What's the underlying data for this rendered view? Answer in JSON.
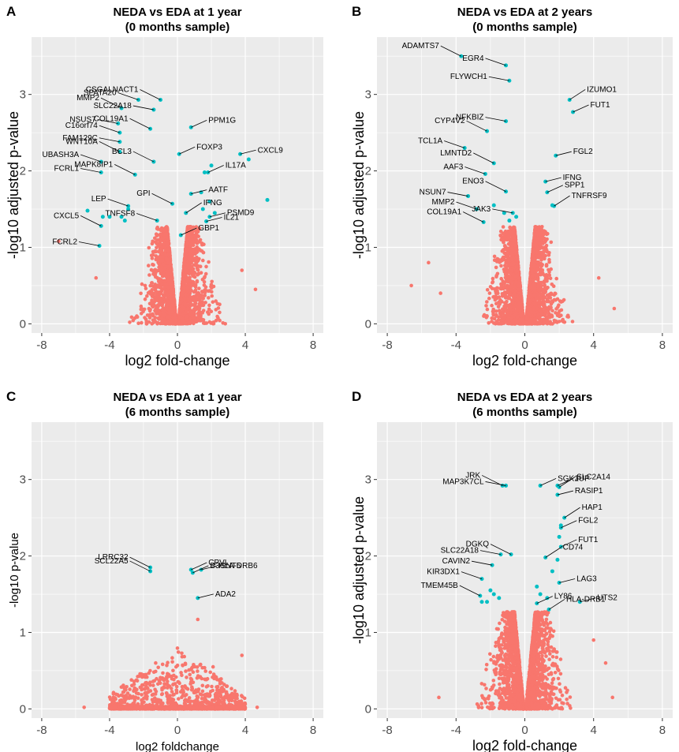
{
  "chart_data": [
    {
      "panel": "A",
      "type": "scatter",
      "title": [
        "NEDA vs EDA at 1 year",
        "(0 months sample)"
      ],
      "xlabel": "log2 fold-change",
      "ylabel": "-log10 adjusted p-value",
      "xlim": [
        -8.6,
        8.6
      ],
      "ylim": [
        -0.12,
        3.75
      ],
      "xticks": [
        -8,
        -4,
        0,
        4,
        8
      ],
      "yticks": [
        0,
        1,
        2,
        3
      ],
      "cloud": {
        "threshold": 1.27,
        "xspread": 2.3,
        "outliers": [
          [
            -7.0,
            1.08
          ],
          [
            -4.8,
            0.6
          ],
          [
            3.8,
            0.7
          ],
          [
            4.6,
            0.45
          ]
        ]
      },
      "sig_points": [
        [
          -5.3,
          1.48
        ],
        [
          -4.4,
          1.4
        ],
        [
          -4.0,
          1.4
        ],
        [
          -3.1,
          1.35
        ],
        [
          -2.9,
          1.5
        ],
        [
          -3.3,
          1.4
        ],
        [
          5.3,
          1.62
        ],
        [
          4.2,
          2.15
        ],
        [
          2.0,
          2.07
        ],
        [
          1.6,
          1.98
        ],
        [
          1.9,
          1.6
        ],
        [
          2.2,
          1.45
        ],
        [
          1.5,
          1.5
        ],
        [
          1.4,
          1.72
        ]
      ],
      "labels": [
        {
          "gene": "CSGALNACT1",
          "x": -1.0,
          "y": 2.93
        },
        {
          "gene": "SPATA20",
          "x": -2.3,
          "y": 2.93
        },
        {
          "gene": "SLC22A18",
          "x": -1.4,
          "y": 2.8
        },
        {
          "gene": "MMP2",
          "x": -3.3,
          "y": 2.82
        },
        {
          "gene": "PPM1G",
          "x": 0.8,
          "y": 2.57
        },
        {
          "gene": "NSUS7",
          "x": -3.5,
          "y": 2.62
        },
        {
          "gene": "COL19A1",
          "x": -1.6,
          "y": 2.55
        },
        {
          "gene": "C16orf74",
          "x": -3.4,
          "y": 2.5
        },
        {
          "gene": "FAM129C",
          "x": -3.4,
          "y": 2.38
        },
        {
          "gene": "WNT10A",
          "x": -3.4,
          "y": 2.25
        },
        {
          "gene": "UBASH3A",
          "x": -4.5,
          "y": 2.12
        },
        {
          "gene": "FCRL1",
          "x": -4.5,
          "y": 1.98
        },
        {
          "gene": "BCL3",
          "x": -1.4,
          "y": 2.12
        },
        {
          "gene": "FOXP3",
          "x": 0.1,
          "y": 2.22
        },
        {
          "gene": "CXCL9",
          "x": 3.7,
          "y": 2.22
        },
        {
          "gene": "MAPK8IP1",
          "x": -2.5,
          "y": 1.95
        },
        {
          "gene": "IL17A",
          "x": 1.8,
          "y": 1.98
        },
        {
          "gene": "AATF",
          "x": 0.8,
          "y": 1.7
        },
        {
          "gene": "GPI",
          "x": -0.3,
          "y": 1.57
        },
        {
          "gene": "LEP",
          "x": -2.9,
          "y": 1.54
        },
        {
          "gene": "PSMD9",
          "x": 1.9,
          "y": 1.4
        },
        {
          "gene": "IFNG",
          "x": 0.5,
          "y": 1.45
        },
        {
          "gene": "TNFSF8",
          "x": -1.2,
          "y": 1.35
        },
        {
          "gene": "IL21",
          "x": 1.7,
          "y": 1.34
        },
        {
          "gene": "CXCL5",
          "x": -4.5,
          "y": 1.28
        },
        {
          "gene": "GBP1",
          "x": 0.2,
          "y": 1.16
        },
        {
          "gene": "FCRL2",
          "x": -4.6,
          "y": 1.02
        }
      ]
    },
    {
      "panel": "B",
      "type": "scatter",
      "title": [
        "NEDA vs EDA at 2 years",
        "(0 months sample)"
      ],
      "xlabel": "log2 fold-change",
      "ylabel": "-log10 adjusted p-value",
      "xlim": [
        -8.6,
        8.6
      ],
      "ylim": [
        -0.12,
        3.75
      ],
      "xticks": [
        -8,
        -4,
        0,
        4,
        8
      ],
      "yticks": [
        0,
        1,
        2,
        3
      ],
      "cloud": {
        "threshold": 1.27,
        "xspread": 2.2,
        "outliers": [
          [
            -6.6,
            0.5
          ],
          [
            -5.6,
            0.8
          ],
          [
            -4.9,
            0.4
          ],
          [
            5.2,
            0.2
          ],
          [
            4.3,
            0.6
          ]
        ]
      },
      "sig_points": [
        [
          -1.2,
          1.45
        ],
        [
          -0.9,
          1.35
        ],
        [
          -1.8,
          1.55
        ],
        [
          1.6,
          1.55
        ],
        [
          -0.5,
          1.4
        ]
      ],
      "labels": [
        {
          "gene": "ADAMTS7",
          "x": -3.7,
          "y": 3.5
        },
        {
          "gene": "EGR4",
          "x": -1.1,
          "y": 3.38
        },
        {
          "gene": "FLYWCH1",
          "x": -0.9,
          "y": 3.18
        },
        {
          "gene": "IZUMO1",
          "x": 2.6,
          "y": 2.93
        },
        {
          "gene": "FUT1",
          "x": 2.8,
          "y": 2.77
        },
        {
          "gene": "NFKBIZ",
          "x": -1.1,
          "y": 2.65
        },
        {
          "gene": "CYP4V2",
          "x": -2.2,
          "y": 2.52
        },
        {
          "gene": "TCL1A",
          "x": -3.5,
          "y": 2.3
        },
        {
          "gene": "FGL2",
          "x": 1.8,
          "y": 2.2
        },
        {
          "gene": "LMNTD2",
          "x": -1.8,
          "y": 2.1
        },
        {
          "gene": "AAF3",
          "x": -2.3,
          "y": 1.96
        },
        {
          "gene": "IFNG",
          "x": 1.2,
          "y": 1.86
        },
        {
          "gene": "ENO3",
          "x": -1.1,
          "y": 1.73
        },
        {
          "gene": "SPP1",
          "x": 1.3,
          "y": 1.72
        },
        {
          "gene": "NSUN7",
          "x": -3.3,
          "y": 1.67
        },
        {
          "gene": "TNFRSF9",
          "x": 1.7,
          "y": 1.54
        },
        {
          "gene": "MMP2",
          "x": -2.8,
          "y": 1.5
        },
        {
          "gene": "JAK3",
          "x": -0.7,
          "y": 1.45
        },
        {
          "gene": "COL19A1",
          "x": -2.4,
          "y": 1.33
        }
      ]
    },
    {
      "panel": "C",
      "type": "scatter",
      "title": [
        "NEDA vs EDA at 1 year",
        "(6 months sample)"
      ],
      "xlabel": "log2 foldchange",
      "ylabel": "-log10 p-value",
      "xlim": [
        -8.6,
        8.6
      ],
      "ylim": [
        -0.12,
        3.75
      ],
      "xticks": [
        -8,
        -4,
        0,
        4,
        8
      ],
      "yticks": [
        0,
        1,
        2,
        3
      ],
      "cloud": {
        "threshold": 0.8,
        "xspread": 4.0,
        "outliers": [
          [
            -5.5,
            0.02
          ],
          [
            4.7,
            0.02
          ],
          [
            3.8,
            0.7
          ],
          [
            1.2,
            1.17
          ],
          [
            2.1,
            0.55
          ]
        ]
      },
      "sig_points": [],
      "labels": [
        {
          "gene": "LRRC32",
          "x": -1.6,
          "y": 1.85
        },
        {
          "gene": "CPVL",
          "x": 0.8,
          "y": 1.82
        },
        {
          "gene": "HLA-DRB6",
          "x": 1.4,
          "y": 1.82
        },
        {
          "gene": "SCL22A5",
          "x": -1.6,
          "y": 1.8
        },
        {
          "gene": "B3GNT5",
          "x": 0.9,
          "y": 1.78
        },
        {
          "gene": "ADA2",
          "x": 1.2,
          "y": 1.45
        }
      ]
    },
    {
      "panel": "D",
      "type": "scatter",
      "title": [
        "NEDA vs EDA at 2 years",
        "(6 months sample)"
      ],
      "xlabel": "log2 fold-change",
      "ylabel": "-log10 adjusted p-value",
      "xlim": [
        -8.6,
        8.6
      ],
      "ylim": [
        -0.12,
        3.75
      ],
      "xticks": [
        -8,
        -4,
        0,
        4,
        8
      ],
      "yticks": [
        0,
        1,
        2,
        3
      ],
      "cloud": {
        "threshold": 1.27,
        "xspread": 2.4,
        "outliers": [
          [
            -5.0,
            0.15
          ],
          [
            5.1,
            0.15
          ],
          [
            4.7,
            0.6
          ],
          [
            4.0,
            0.9
          ]
        ]
      },
      "sig_points": [
        [
          -2.5,
          1.4
        ],
        [
          -2.2,
          1.4
        ],
        [
          -1.8,
          1.5
        ],
        [
          -1.5,
          1.45
        ],
        [
          0.9,
          1.5
        ],
        [
          1.3,
          1.45
        ],
        [
          0.7,
          1.6
        ],
        [
          1.6,
          1.8
        ],
        [
          1.9,
          1.95
        ],
        [
          2.0,
          2.25
        ],
        [
          2.1,
          2.4
        ],
        [
          -2.0,
          1.55
        ]
      ],
      "labels": [
        {
          "gene": "JRK",
          "x": -1.3,
          "y": 2.92
        },
        {
          "gene": "JUP",
          "x": 1.9,
          "y": 2.92
        },
        {
          "gene": "MAP3K7CL",
          "x": -1.1,
          "y": 2.92
        },
        {
          "gene": "SLC2A14",
          "x": 2.0,
          "y": 2.9
        },
        {
          "gene": "SGK1",
          "x": 0.9,
          "y": 2.92
        },
        {
          "gene": "RASIP1",
          "x": 1.9,
          "y": 2.8
        },
        {
          "gene": "HAP1",
          "x": 2.3,
          "y": 2.5
        },
        {
          "gene": "FGL2",
          "x": 2.1,
          "y": 2.37
        },
        {
          "gene": "SLC22A18",
          "x": -1.4,
          "y": 2.02
        },
        {
          "gene": "DGKQ",
          "x": -0.8,
          "y": 2.02
        },
        {
          "gene": "FUT1",
          "x": 2.1,
          "y": 2.12
        },
        {
          "gene": "CAVIN2",
          "x": -1.9,
          "y": 1.88
        },
        {
          "gene": "CD74",
          "x": 1.2,
          "y": 1.98
        },
        {
          "gene": "KIR3DX1",
          "x": -2.5,
          "y": 1.7
        },
        {
          "gene": "LAG3",
          "x": 2.0,
          "y": 1.65
        },
        {
          "gene": "TMEM45B",
          "x": -2.6,
          "y": 1.48
        },
        {
          "gene": "LY86",
          "x": 0.7,
          "y": 1.38
        },
        {
          "gene": "UTS2",
          "x": 3.2,
          "y": 1.4
        },
        {
          "gene": "HLA-DRB1",
          "x": 1.4,
          "y": 1.3
        }
      ]
    }
  ],
  "colors": {
    "panel_bg": "#ebebeb",
    "grid": "#ffffff",
    "nonsig": "#f8766d",
    "sig": "#00bfc4",
    "label_text": "#000000",
    "leader_line": "#000000"
  },
  "panel_letters": [
    "A",
    "B",
    "C",
    "D"
  ]
}
